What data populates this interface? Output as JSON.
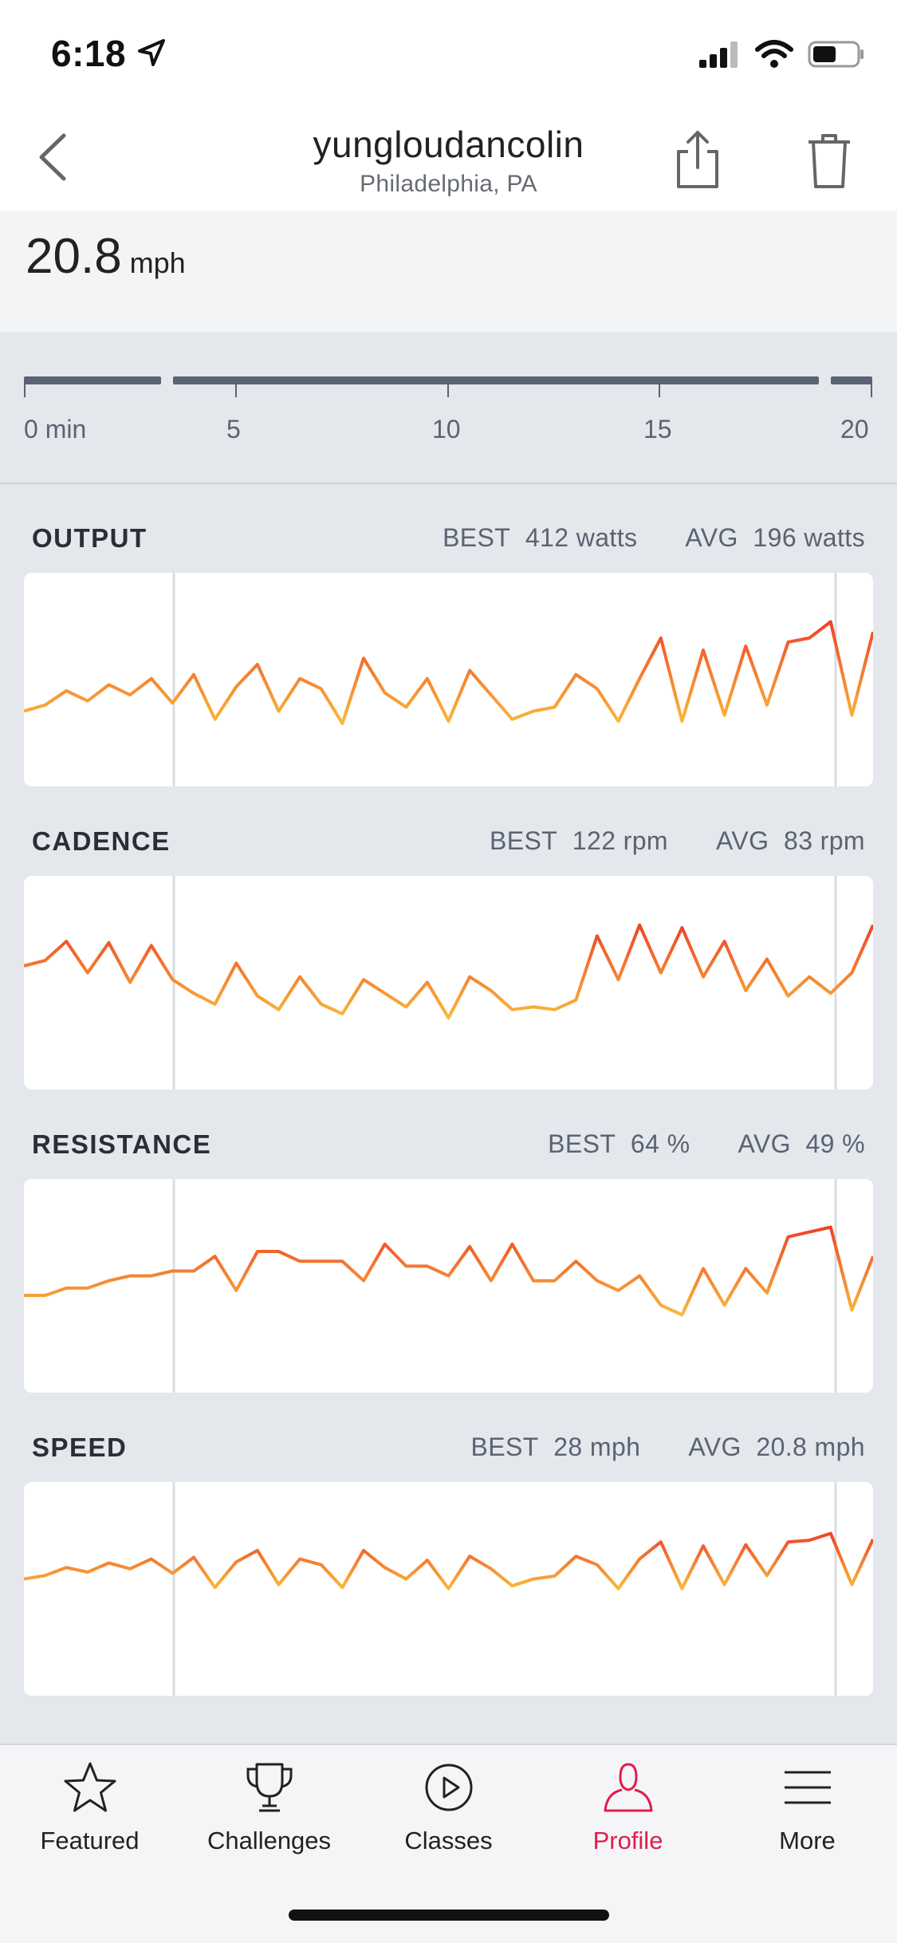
{
  "status_bar": {
    "time": "6:18"
  },
  "nav": {
    "title": "yungloudancolin",
    "subtitle": "Philadelphia, PA"
  },
  "current_metric": {
    "value": "20.8",
    "unit": "mph"
  },
  "timeline": {
    "labels": [
      "0 min",
      "5",
      "10",
      "15",
      "20"
    ]
  },
  "sections": [
    {
      "key": "output",
      "title": "OUTPUT",
      "best_label": "BEST",
      "best_value": "412 watts",
      "avg_label": "AVG",
      "avg_value": "196 watts"
    },
    {
      "key": "cadence",
      "title": "CADENCE",
      "best_label": "BEST",
      "best_value": "122 rpm",
      "avg_label": "AVG",
      "avg_value": "83 rpm"
    },
    {
      "key": "resistance",
      "title": "RESISTANCE",
      "best_label": "BEST",
      "best_value": "64 %",
      "avg_label": "AVG",
      "avg_value": "49 %"
    },
    {
      "key": "speed",
      "title": "SPEED",
      "best_label": "BEST",
      "best_value": "28 mph",
      "avg_label": "AVG",
      "avg_value": "20.8 mph"
    }
  ],
  "chart_data": [
    {
      "type": "line",
      "name": "output",
      "xlim": [
        0,
        20
      ],
      "ylim": [
        0,
        420
      ],
      "x": [
        0,
        0.5,
        1,
        1.5,
        2,
        2.5,
        3,
        3.5,
        4,
        4.5,
        5,
        5.5,
        6,
        6.5,
        7,
        7.5,
        8,
        8.5,
        9,
        9.5,
        10,
        10.5,
        11,
        11.5,
        12,
        12.5,
        13,
        13.5,
        14,
        14.5,
        15,
        15.5,
        16,
        16.5,
        17,
        17.5,
        18,
        18.5,
        19,
        19.5,
        20
      ],
      "values": [
        150,
        165,
        200,
        175,
        215,
        190,
        230,
        170,
        240,
        130,
        210,
        265,
        150,
        230,
        205,
        120,
        280,
        195,
        160,
        230,
        125,
        250,
        190,
        130,
        150,
        160,
        240,
        205,
        125,
        230,
        330,
        125,
        300,
        140,
        310,
        165,
        320,
        330,
        370,
        140,
        345
      ]
    },
    {
      "type": "line",
      "name": "cadence",
      "xlim": [
        0,
        20
      ],
      "ylim": [
        0,
        125
      ],
      "x": [
        0,
        0.5,
        1,
        1.5,
        2,
        2.5,
        3,
        3.5,
        4,
        4.5,
        5,
        5.5,
        6,
        6.5,
        7,
        7.5,
        8,
        8.5,
        9,
        9.5,
        10,
        10.5,
        11,
        11.5,
        12,
        12.5,
        13,
        13.5,
        14,
        14.5,
        15,
        15.5,
        16,
        16.5,
        17,
        17.5,
        18,
        18.5,
        19,
        19.5,
        20
      ],
      "values": [
        80,
        84,
        98,
        75,
        97,
        68,
        95,
        70,
        60,
        52,
        82,
        58,
        48,
        72,
        52,
        45,
        70,
        60,
        50,
        68,
        42,
        72,
        62,
        48,
        50,
        48,
        55,
        102,
        70,
        110,
        75,
        108,
        72,
        98,
        62,
        85,
        58,
        72,
        60,
        75,
        110
      ]
    },
    {
      "type": "line",
      "name": "resistance",
      "xlim": [
        0,
        20
      ],
      "ylim": [
        0,
        70
      ],
      "x": [
        0,
        0.5,
        1,
        1.5,
        2,
        2.5,
        3,
        3.5,
        4,
        4.5,
        5,
        5.5,
        6,
        6.5,
        7,
        7.5,
        8,
        8.5,
        9,
        9.5,
        10,
        10.5,
        11,
        11.5,
        12,
        12.5,
        13,
        13.5,
        14,
        14.5,
        15,
        15.5,
        16,
        16.5,
        17,
        17.5,
        18,
        18.5,
        19,
        19.5,
        20
      ],
      "values": [
        34,
        34,
        37,
        37,
        40,
        42,
        42,
        44,
        44,
        50,
        36,
        52,
        52,
        48,
        48,
        48,
        40,
        55,
        46,
        46,
        42,
        54,
        40,
        55,
        40,
        40,
        48,
        40,
        36,
        42,
        30,
        26,
        45,
        30,
        45,
        35,
        58,
        60,
        62,
        28,
        50
      ]
    },
    {
      "type": "line",
      "name": "speed",
      "xlim": [
        0,
        20
      ],
      "ylim": [
        0,
        30
      ],
      "x": [
        0,
        0.5,
        1,
        1.5,
        2,
        2.5,
        3,
        3.5,
        4,
        4.5,
        5,
        5.5,
        6,
        6.5,
        7,
        7.5,
        8,
        8.5,
        9,
        9.5,
        10,
        10.5,
        11,
        11.5,
        12,
        12.5,
        13,
        13.5,
        14,
        14.5,
        15,
        15.5,
        16,
        16.5,
        17,
        17.5,
        18,
        18.5,
        19,
        19.5,
        20
      ],
      "values": [
        18,
        18.6,
        20,
        19.2,
        20.8,
        19.8,
        21.5,
        19,
        21.8,
        16.5,
        21,
        23,
        17,
        21.5,
        20.5,
        16.5,
        23,
        20,
        18,
        21.3,
        16.3,
        22,
        19.8,
        16.8,
        18,
        18.5,
        22,
        20.5,
        16.3,
        21.5,
        24.5,
        16.3,
        23.8,
        17,
        24,
        18.6,
        24.5,
        24.8,
        26,
        17,
        25
      ]
    }
  ],
  "tabs": [
    {
      "label": "Featured",
      "icon": "star-icon"
    },
    {
      "label": "Challenges",
      "icon": "trophy-icon"
    },
    {
      "label": "Classes",
      "icon": "play-circle-icon"
    },
    {
      "label": "Profile",
      "icon": "person-icon"
    },
    {
      "label": "More",
      "icon": "menu-icon"
    }
  ],
  "colors": {
    "active_tab": "#df1d4c",
    "line_high": "#ef4328",
    "line_low": "#f9b93a"
  }
}
